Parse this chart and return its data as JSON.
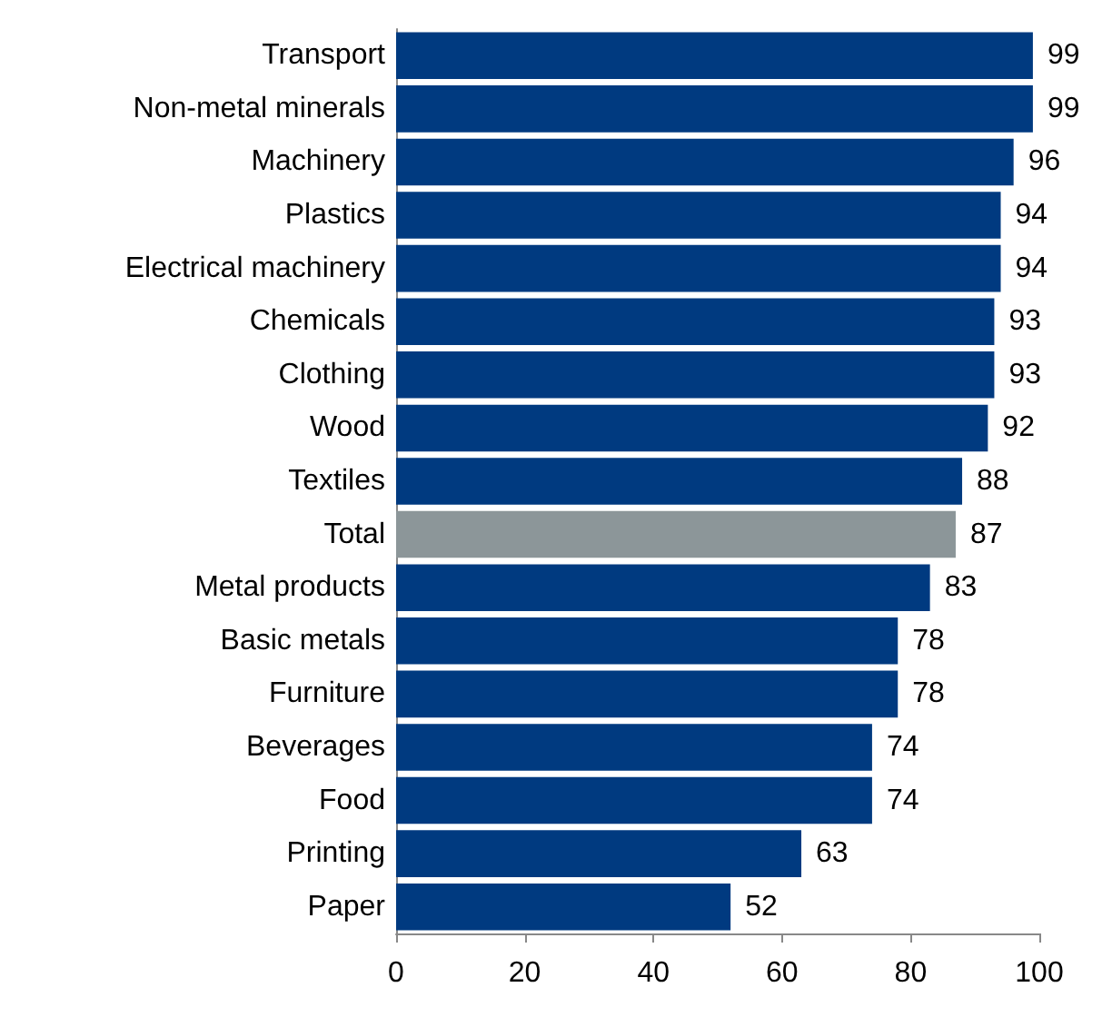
{
  "chart_data": {
    "type": "bar",
    "orientation": "horizontal",
    "categories": [
      "Transport",
      "Non-metal minerals",
      "Machinery",
      "Plastics",
      "Electrical machinery",
      "Chemicals",
      "Clothing",
      "Wood",
      "Textiles",
      "Total",
      "Metal products",
      "Basic metals",
      "Furniture",
      "Beverages",
      "Food",
      "Printing",
      "Paper"
    ],
    "values": [
      99,
      99,
      96,
      94,
      94,
      93,
      93,
      92,
      88,
      87,
      83,
      78,
      78,
      74,
      74,
      63,
      52
    ],
    "colors": [
      "#003a80",
      "#003a80",
      "#003a80",
      "#003a80",
      "#003a80",
      "#003a80",
      "#003a80",
      "#003a80",
      "#003a80",
      "#8c9699",
      "#003a80",
      "#003a80",
      "#003a80",
      "#003a80",
      "#003a80",
      "#003a80",
      "#003a80"
    ],
    "xlim": [
      0,
      100
    ],
    "xticks": [
      0,
      20,
      40,
      60,
      80,
      100
    ],
    "data_labels": true,
    "grid": false
  }
}
